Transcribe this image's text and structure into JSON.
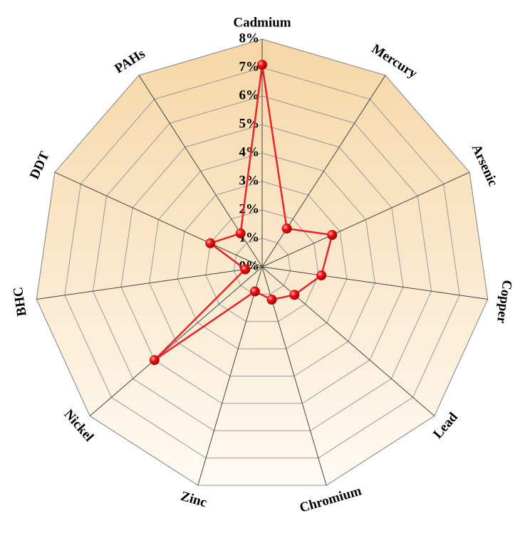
{
  "chart_data": {
    "type": "radar",
    "categories": [
      "Cadmium",
      "Mercury",
      "Arsenic",
      "Copper",
      "Lead",
      "Chromium",
      "Zinc",
      "Nickel",
      "BHC",
      "DDT",
      "PAHs"
    ],
    "values": [
      7.1,
      1.6,
      2.7,
      2.1,
      1.5,
      1.2,
      0.9,
      5.0,
      0.6,
      2.0,
      1.4
    ],
    "color": "#e8232a",
    "rlim": [
      0,
      8
    ],
    "rticks": [
      {
        "value": 0,
        "label": "0%"
      },
      {
        "value": 1,
        "label": "1%"
      },
      {
        "value": 2,
        "label": "2%"
      },
      {
        "value": 3,
        "label": "3%"
      },
      {
        "value": 4,
        "label": "4%"
      },
      {
        "value": 5,
        "label": "5%"
      },
      {
        "value": 6,
        "label": "6%"
      },
      {
        "value": 7,
        "label": "7%"
      },
      {
        "value": 8,
        "label": "8%"
      }
    ],
    "grid": true
  }
}
